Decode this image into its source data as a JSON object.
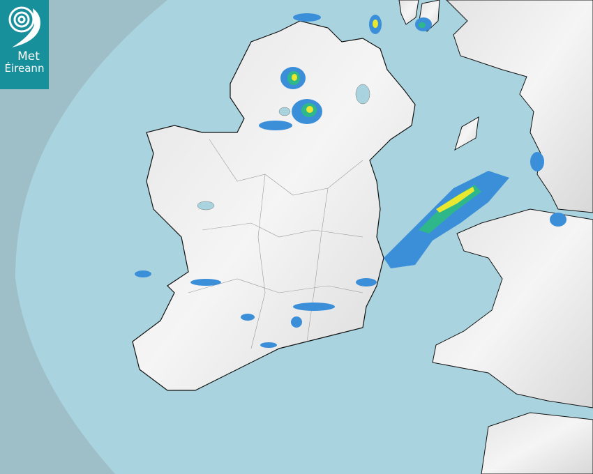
{
  "logo": {
    "line1": "Met",
    "line2": "Éireann",
    "color": "#17909b"
  },
  "map": {
    "type": "rainfall-radar",
    "colors": {
      "outside_coverage": "#9ebfc8",
      "sea": "#a9d3de",
      "land": "#f1f1f1",
      "rain_light": "#3b8fd9",
      "rain_moderate": "#2eb88a",
      "rain_heavy": "#e8e830"
    }
  }
}
